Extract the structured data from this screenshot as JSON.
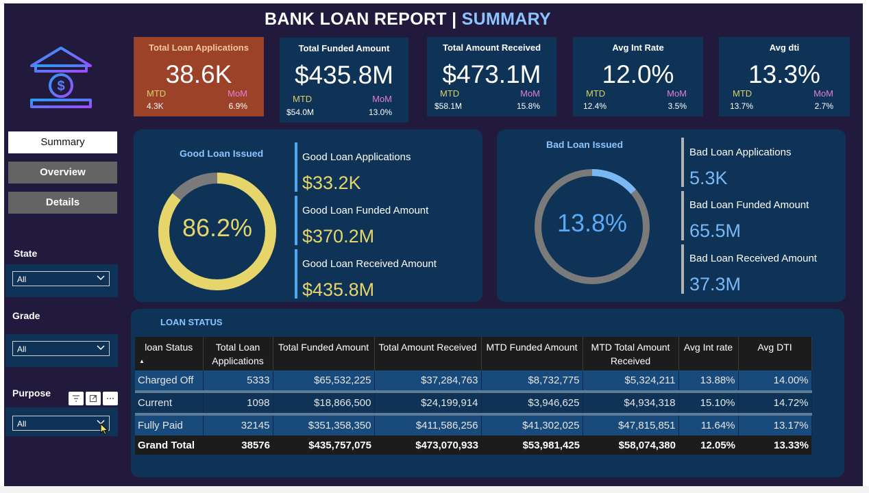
{
  "report": {
    "title_main": "BANK LOAN REPORT | ",
    "title_accent": "SUMMARY"
  },
  "colors": {
    "background": "#211a3c",
    "card": "#0f3357",
    "active_card": "#9c4229",
    "good_accent": "#e6d56a",
    "bad_accent": "#7ab8f5",
    "mtd": "#d6d266",
    "mom": "#e07fd6"
  },
  "kpis": [
    {
      "label": "Total Loan Applications",
      "value": "38.6K",
      "mtd_label": "MTD",
      "mtd_value": "4.3K",
      "mom_label": "MoM",
      "mom_value": "6.9%"
    },
    {
      "label": "Total Funded Amount",
      "value": "$435.8M",
      "mtd_label": "MTD",
      "mtd_value": "$54.0M",
      "mom_label": "MoM",
      "mom_value": "13.0%"
    },
    {
      "label": "Total Amount Received",
      "value": "$473.1M",
      "mtd_label": "MTD",
      "mtd_value": "$58.1M",
      "mom_label": "MoM",
      "mom_value": "15.8%"
    },
    {
      "label": "Avg Int Rate",
      "value": "12.0%",
      "mtd_label": "MTD",
      "mtd_value": "12.4%",
      "mom_label": "MoM",
      "mom_value": "3.5%"
    },
    {
      "label": "Avg dti",
      "value": "13.3%",
      "mtd_label": "MTD",
      "mtd_value": "13.7%",
      "mom_label": "MoM",
      "mom_value": "2.7%"
    }
  ],
  "nav": {
    "summary": "Summary",
    "overview": "Overview",
    "details": "Details"
  },
  "filters": {
    "state": {
      "label": "State",
      "value": "All"
    },
    "grade": {
      "label": "Grade",
      "value": "All"
    },
    "purpose": {
      "label": "Purpose",
      "value": "All"
    }
  },
  "good_loan": {
    "title": "Good Loan Issued",
    "percent_label": "86.2%",
    "percent_value": 86.2,
    "applications_label": "Good Loan Applications",
    "applications_value": "$33.2K",
    "funded_label": "Good Loan Funded Amount",
    "funded_value": "$370.2M",
    "received_label": "Good Loan Received Amount",
    "received_value": "$435.8M"
  },
  "bad_loan": {
    "title": "Bad Loan Issued",
    "percent_label": "13.8%",
    "percent_value": 13.8,
    "applications_label": "Bad Loan Applications",
    "applications_value": "5.3K",
    "funded_label": "Bad Loan Funded Amount",
    "funded_value": "65.5M",
    "received_label": "Bad Loan Received Amount",
    "received_value": "37.3M"
  },
  "loan_status": {
    "title": "LOAN STATUS",
    "columns": [
      "loan Status",
      "Total Loan Applications",
      "Total Funded Amount",
      "Total Amount Received",
      "MTD Funded Amount",
      "MTD Total Amount Received",
      "Avg Int rate",
      "Avg DTI"
    ],
    "rows": [
      [
        "Charged Off",
        "5333",
        "$65,532,225",
        "$37,284,763",
        "$8,732,775",
        "$5,324,211",
        "13.88%",
        "14.00%"
      ],
      [
        "Current",
        "1098",
        "$18,866,500",
        "$24,199,914",
        "$3,946,625",
        "$4,934,318",
        "15.10%",
        "14.72%"
      ],
      [
        "Fully Paid",
        "32145",
        "$351,358,350",
        "$411,586,256",
        "$41,302,025",
        "$47,815,851",
        "11.64%",
        "13.17%"
      ]
    ],
    "total": [
      "Grand Total",
      "38576",
      "$435,757,075",
      "$473,070,933",
      "$53,981,425",
      "$58,074,380",
      "12.05%",
      "13.33%"
    ]
  }
}
